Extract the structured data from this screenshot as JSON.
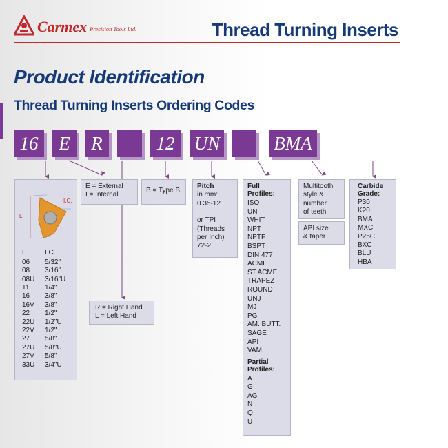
{
  "header": {
    "brand": "Carmex",
    "brand_sub": "Precision Tools Ltd.",
    "title": "Thread Turning Inserts"
  },
  "page_title": "Product Identification",
  "subtitle": "Thread Turning Inserts Ordering Codes",
  "codes": [
    "16",
    "E",
    "R",
    "",
    "12",
    "UN",
    "",
    "BMA"
  ],
  "size_panel": {
    "diagram_labels": {
      "l": "L",
      "ic": "I.C."
    },
    "col_headers": [
      "L",
      "I.C."
    ],
    "rows": [
      [
        "06",
        "5/32\""
      ],
      [
        "08",
        "3/16\""
      ],
      [
        "08U",
        "3/16\"U"
      ],
      [
        "11",
        "1/4\""
      ],
      [
        "16",
        "3/8\""
      ],
      [
        "16V",
        "3/8\""
      ],
      [
        "22",
        "1/2\""
      ],
      [
        "22U",
        "1/2\"U"
      ],
      [
        "22V",
        "1/2\""
      ],
      [
        "27",
        "5/8\""
      ],
      [
        "27U",
        "5/8\"U"
      ],
      [
        "27V",
        "5/8\""
      ],
      [
        "33U",
        "3/4\"U"
      ]
    ]
  },
  "type_panel": {
    "lines": [
      "E = External",
      "I = Internal"
    ]
  },
  "typeb_panel": {
    "text": "B = Type B"
  },
  "hand_panel": {
    "lines": [
      "R = Right Hand",
      "L = Left Hand"
    ]
  },
  "pitch_panel": {
    "heading": "Pitch",
    "lines": [
      "in mm:",
      "0.35-12",
      "",
      "or TPI",
      "(Threads",
      "per Inch)",
      "72-2"
    ]
  },
  "profile_panel": {
    "full_heading": "Full Profiles:",
    "full": [
      "ISO",
      "UN",
      "WHIT",
      "NPT",
      "NPTF",
      "BSPT",
      "DIN 477",
      "ACME",
      "ST.ACME",
      "TRAPEZ",
      "ROUND",
      "UNJ",
      "MJ",
      "PG",
      "AM. BUTT.",
      "SAGE",
      "API",
      "VAM"
    ],
    "partial_heading": "Partial Profiles:",
    "partial": [
      "A",
      "G",
      "AG",
      "N",
      "Q",
      "U"
    ]
  },
  "multitooth_panel": {
    "lines": [
      "Multitooth",
      "style &",
      "number",
      "of teeth"
    ]
  },
  "api_panel": {
    "lines": [
      "API size",
      "& taper"
    ]
  },
  "grade_panel": {
    "heading": "Carbide Grade:",
    "grades": [
      "P30",
      "K20",
      "BMA",
      "MXC",
      "P25C",
      "BXC",
      "BLU",
      "HBA"
    ]
  },
  "colors": {
    "purple": "#7a3a93",
    "navy": "#163a78",
    "red": "#c0282c",
    "panel": "#dcdbe8"
  }
}
